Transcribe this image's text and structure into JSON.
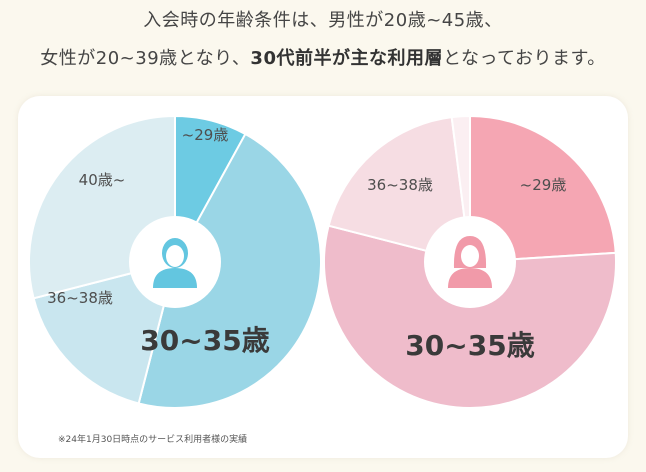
{
  "heading": {
    "line1": "入会時の年齢条件は、男性が20歳~45歳、",
    "line2_pre": "女性が20~39歳となり、",
    "line2_strong": "30代前半が主な利用層",
    "line2_post": "となっております。"
  },
  "note": "※24年1月30日時点のサービス利用者様の実績",
  "icons": [
    "male-user-icon",
    "female-user-icon"
  ],
  "chart_data": [
    {
      "type": "pie",
      "name": "",
      "slices": [
        {
          "label": "~29歳",
          "value": 8,
          "color": "#6dcbe3",
          "big": false
        },
        {
          "label": "30~35歳",
          "value": 46,
          "color": "#9ad6e6",
          "big": true
        },
        {
          "label": "36~38歳",
          "value": 17,
          "color": "#c9e6ef",
          "big": false
        },
        {
          "label": "40歳~",
          "value": 29,
          "color": "#dcedf2",
          "big": false
        }
      ]
    },
    {
      "type": "pie",
      "name": "",
      "slices": [
        {
          "label": "~29歳",
          "value": 24,
          "color": "#f5a6b3",
          "big": false
        },
        {
          "label": "30~35歳",
          "value": 55,
          "color": "#efbccb",
          "big": true
        },
        {
          "label": "36~38歳",
          "value": 19,
          "color": "#f6dde3",
          "big": false
        },
        {
          "label": "",
          "value": 2,
          "color": "#fbeff2",
          "big": false
        }
      ]
    }
  ]
}
